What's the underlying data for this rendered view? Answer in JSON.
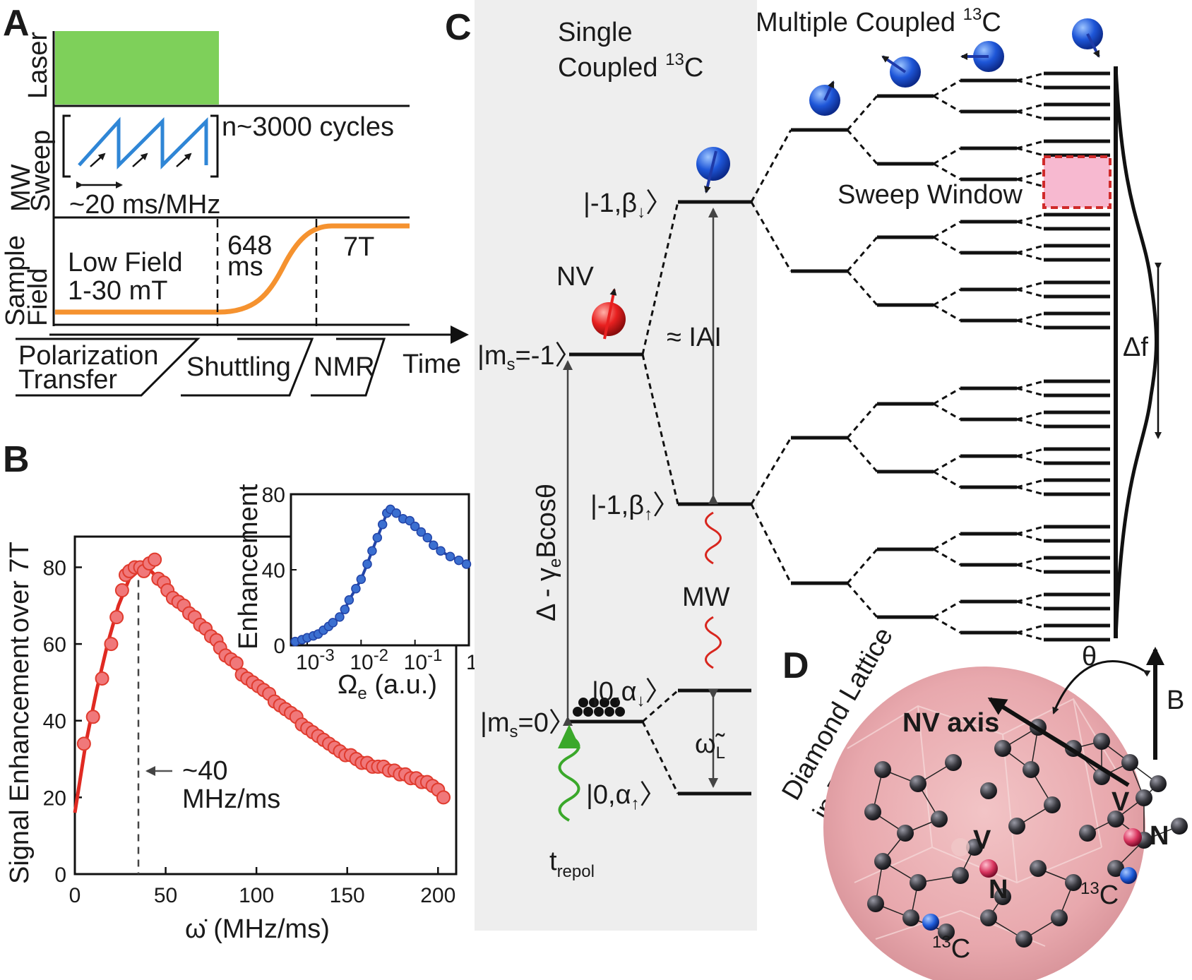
{
  "panel_a": {
    "label": "A",
    "row_labels": {
      "laser": "Laser",
      "mw_1": "MW",
      "mw_2": "Sweep",
      "field_1": "Sample",
      "field_2": "Field"
    },
    "cycles": "n~3000 cycles",
    "rate": "~20 ms/MHz",
    "low_field": "Low Field",
    "low_field_range": "1-30 mT",
    "shuttle_time_1": "648",
    "shuttle_time_2": "ms",
    "high_field": "7T",
    "time_label": "Time",
    "phases": {
      "polarization_1": "Polarization",
      "polarization_2": "Transfer",
      "shuttling": "Shuttling",
      "nmr": "NMR"
    },
    "colors": {
      "laser": "#7ed05a",
      "sweep": "#2f86d6",
      "field": "#f5922f"
    }
  },
  "panel_b": {
    "label": "B",
    "ylabel_1": "Signal Enhancement",
    "ylabel_2": "over 7T",
    "xlabel": "ω̇ (MHz/ms)",
    "annotation_1": "~40",
    "annotation_2": "MHz/ms",
    "x_ticks": [
      "0",
      "50",
      "100",
      "150",
      "200"
    ],
    "y_ticks": [
      "0",
      "20",
      "40",
      "60",
      "80"
    ],
    "inset": {
      "ylabel": "Enhancement",
      "x_ticks": [
        {
          "base": "10",
          "exp": "-3"
        },
        {
          "base": "10",
          "exp": "-2"
        },
        {
          "base": "10",
          "exp": "-1"
        },
        {
          "base": "1",
          "exp": ""
        }
      ],
      "y_ticks": [
        "0",
        "40",
        "80"
      ],
      "xlabel_symbol": "Ω",
      "xlabel_sub": "e",
      "xlabel_unit": " (a.u.)"
    }
  },
  "chart_data": [
    {
      "type": "scatter",
      "xlim": [
        0,
        210
      ],
      "ylim": [
        0,
        88
      ],
      "color": "#e03b2e",
      "marker_color": "#f0787a",
      "fit_color": "#e02a22",
      "reference_line_x": 35,
      "points": [
        [
          5,
          34
        ],
        [
          10,
          41
        ],
        [
          15,
          51
        ],
        [
          20,
          60
        ],
        [
          23,
          67
        ],
        [
          26,
          74
        ],
        [
          28,
          78
        ],
        [
          30,
          79
        ],
        [
          33,
          80
        ],
        [
          36,
          80
        ],
        [
          38,
          79
        ],
        [
          41,
          81
        ],
        [
          44,
          82
        ],
        [
          46,
          77
        ],
        [
          49,
          76
        ],
        [
          51,
          74
        ],
        [
          54,
          72
        ],
        [
          57,
          71
        ],
        [
          60,
          70
        ],
        [
          63,
          68
        ],
        [
          66,
          67
        ],
        [
          69,
          65
        ],
        [
          72,
          64
        ],
        [
          75,
          62
        ],
        [
          78,
          61
        ],
        [
          80,
          59
        ],
        [
          83,
          57
        ],
        [
          86,
          56
        ],
        [
          89,
          55
        ],
        [
          92,
          52
        ],
        [
          95,
          51
        ],
        [
          98,
          50
        ],
        [
          101,
          49
        ],
        [
          104,
          48
        ],
        [
          107,
          47
        ],
        [
          110,
          45
        ],
        [
          113,
          44
        ],
        [
          116,
          43
        ],
        [
          119,
          42
        ],
        [
          122,
          41
        ],
        [
          125,
          39
        ],
        [
          128,
          38
        ],
        [
          131,
          37
        ],
        [
          134,
          36
        ],
        [
          137,
          35
        ],
        [
          140,
          34
        ],
        [
          143,
          33
        ],
        [
          146,
          32
        ],
        [
          149,
          31
        ],
        [
          152,
          31
        ],
        [
          155,
          30
        ],
        [
          158,
          29
        ],
        [
          161,
          29
        ],
        [
          164,
          28
        ],
        [
          167,
          28
        ],
        [
          170,
          28
        ],
        [
          173,
          27
        ],
        [
          176,
          27
        ],
        [
          179,
          26
        ],
        [
          182,
          26
        ],
        [
          185,
          25
        ],
        [
          188,
          25
        ],
        [
          191,
          24
        ],
        [
          194,
          24
        ],
        [
          197,
          23
        ],
        [
          200,
          22
        ],
        [
          203,
          20
        ]
      ],
      "fit": [
        [
          0,
          16
        ],
        [
          6,
          34
        ],
        [
          12,
          48
        ],
        [
          18,
          60
        ],
        [
          24,
          70
        ],
        [
          30,
          77
        ],
        [
          36,
          79.5
        ],
        [
          42,
          79
        ],
        [
          48,
          76
        ],
        [
          55,
          72
        ],
        [
          62,
          68
        ],
        [
          70,
          64
        ],
        [
          80,
          58.5
        ],
        [
          90,
          53
        ],
        [
          100,
          48.5
        ],
        [
          110,
          44.5
        ],
        [
          120,
          41
        ],
        [
          130,
          37.5
        ],
        [
          140,
          34.5
        ],
        [
          150,
          31.5
        ],
        [
          160,
          29.5
        ],
        [
          170,
          27.5
        ],
        [
          180,
          25.8
        ],
        [
          190,
          24
        ],
        [
          200,
          22
        ],
        [
          206,
          20
        ]
      ]
    },
    {
      "type": "line",
      "xscale": "log",
      "xlim": [
        0.0005,
        1
      ],
      "ylim": [
        0,
        80
      ],
      "color": "#2244a8",
      "marker_color": "#3b6fd0",
      "points": [
        [
          0.0006,
          2
        ],
        [
          0.0008,
          3
        ],
        [
          0.001,
          4
        ],
        [
          0.0013,
          5
        ],
        [
          0.0016,
          6
        ],
        [
          0.002,
          8
        ],
        [
          0.0025,
          10
        ],
        [
          0.003,
          12
        ],
        [
          0.004,
          15
        ],
        [
          0.005,
          19
        ],
        [
          0.006,
          24
        ],
        [
          0.008,
          30
        ],
        [
          0.01,
          35
        ],
        [
          0.013,
          43
        ],
        [
          0.016,
          50
        ],
        [
          0.02,
          57
        ],
        [
          0.025,
          64
        ],
        [
          0.03,
          70
        ],
        [
          0.035,
          72
        ],
        [
          0.045,
          70
        ],
        [
          0.06,
          67
        ],
        [
          0.08,
          66
        ],
        [
          0.1,
          63
        ],
        [
          0.13,
          60
        ],
        [
          0.17,
          57
        ],
        [
          0.22,
          53
        ],
        [
          0.3,
          50
        ],
        [
          0.45,
          47
        ],
        [
          0.65,
          45
        ],
        [
          0.9,
          43
        ]
      ]
    }
  ],
  "panel_c": {
    "label": "C",
    "single_1": "Single",
    "single_2": "Coupled ",
    "single_iso": "13",
    "single_el": "C",
    "multi_1": "Multiple Coupled ",
    "multi_iso": "13",
    "multi_el": "C",
    "nv": "NV",
    "ms_m1": "|m",
    "ms_sub": "s",
    "ms_m1_val": "=-1",
    "ms_0_val": "=0",
    "beta_dn": "|-1,β",
    "beta_up": "|-1,β",
    "alpha_dn": "|0,α",
    "alpha_up": "|0,α",
    "hyperfine": "≈ IAI",
    "zeeman": "Δ - γ",
    "zeeman_sub": "e",
    "zeeman_tail": "Bcosθ",
    "mw": "MW",
    "omega": "ω",
    "omega_sub": "L",
    "t_repol": "t",
    "t_repol_sub": "repol",
    "sweep_window": "Sweep Window",
    "delta_f": "Δf",
    "colors": {
      "panel_bg": "#eeeeee",
      "spin_blue": "#1e56d8",
      "spin_red": "#e82020",
      "mw_wave": "#d8261e",
      "laser_wave": "#3aa82a",
      "window": "#f7b9d0",
      "window_border": "#d02a2a"
    }
  },
  "panel_d": {
    "label": "D",
    "caption_1": "Diamond Lattice",
    "caption_2": "in Particle",
    "theta": "θ",
    "b_field": "B",
    "nv_axis": "NV axis",
    "vacancy": "V",
    "nitrogen": "N",
    "iso": "13",
    "carbon": "C",
    "colors": {
      "particle": "#e8a8ad",
      "atom": "#3a3a40",
      "nitrogen_atom": "#d8345e",
      "c13_atom": "#1e5ad8"
    }
  }
}
